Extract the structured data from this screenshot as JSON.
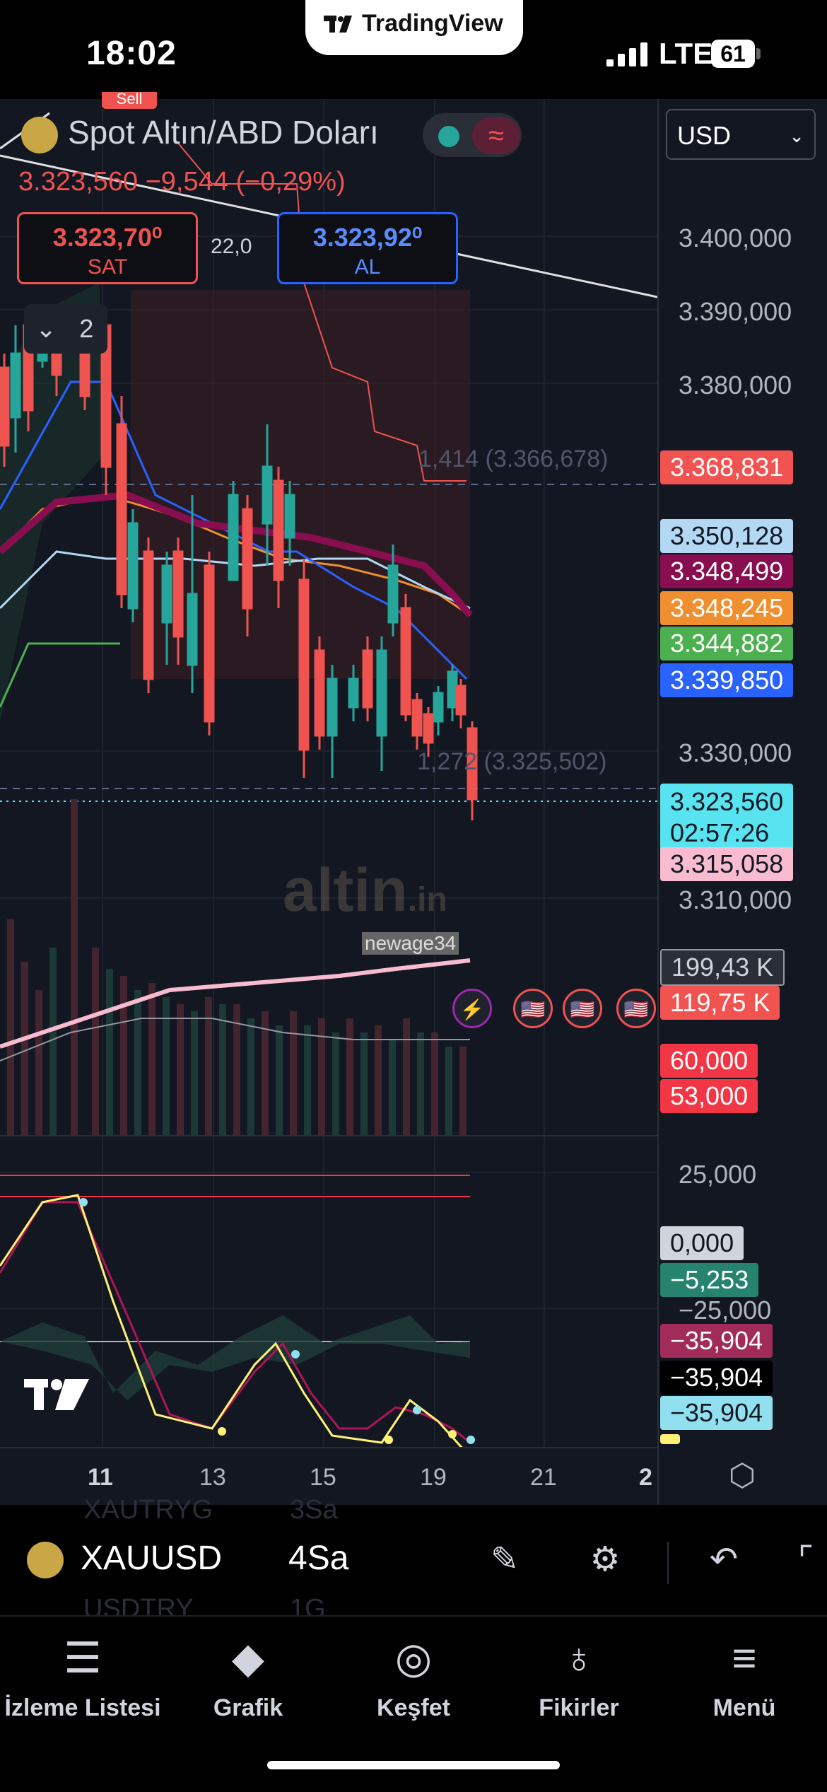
{
  "status_bar": {
    "time": "18:02",
    "carrier_logo": "TradingView",
    "network": "LTE",
    "battery": "61"
  },
  "chart": {
    "symbol_title": "Spot Altın/ABD Doları",
    "price_change": "3.323,560  −9,544 (−0,29%)",
    "sell": {
      "price": "3.323,70⁰",
      "label": "SAT"
    },
    "buy": {
      "price": "3.323,92⁰",
      "label": "AL"
    },
    "spread": "22,0",
    "indicator_count": "2",
    "sell_flag": "Sell",
    "currency": "USD",
    "fib_upper": "1,414 (3.366,678)",
    "fib_lower": "1,272 (3.325,502)",
    "watermark": "altin",
    "watermark_suffix": ".in",
    "author": "newage34",
    "colors": {
      "up": "#26a69a",
      "down": "#ef5350",
      "background": "#131722"
    }
  },
  "price_axis": {
    "labels": [
      "3.400,000",
      "3.390,000",
      "3.380,000",
      "3.330,000",
      "3.310,000",
      "25,000",
      "−25,000"
    ],
    "tags": [
      {
        "text": "3.368,831",
        "color": "#f05350"
      },
      {
        "text": "3.350,128",
        "color": "#b2d8f4"
      },
      {
        "text": "3.348,499",
        "color": "#880e4f"
      },
      {
        "text": "3.348,245",
        "color": "#ef8f30"
      },
      {
        "text": "3.344,882",
        "color": "#4caf50"
      },
      {
        "text": "3.339,850",
        "color": "#2962ff"
      },
      {
        "text": "3.323,560",
        "color": "#57e3f0"
      },
      {
        "text": "02:57:26",
        "color": "#57e3f0"
      },
      {
        "text": "3.315,058",
        "color": "#f8bbd0"
      },
      {
        "text": "199,43 K",
        "color": "#9598a1"
      },
      {
        "text": "119,75 K",
        "color": "#f05350"
      },
      {
        "text": "60,000",
        "color": "#f23645"
      },
      {
        "text": "53,000",
        "color": "#f23645"
      },
      {
        "text": "0,000",
        "color": "#d1d4dc"
      },
      {
        "text": "−5,253",
        "color": "#26836e"
      },
      {
        "text": "−35,904",
        "color": "#a12c5a"
      },
      {
        "text": "−35,904",
        "color": "#000000"
      },
      {
        "text": "−35,904",
        "color": "#90e0ef"
      }
    ]
  },
  "time_axis": [
    "11",
    "13",
    "15",
    "19",
    "21",
    "2"
  ],
  "toolbar": {
    "symbol": "XAUUSD",
    "interval": "4Sa",
    "ghost_row_1": "XAUTRYG",
    "ghost_row_1b": "3Sa",
    "ghost_row_2": "USDTRY",
    "ghost_row_2b": "1G",
    "icons": [
      "pencil-icon",
      "sliders-icon",
      "undo-icon",
      "fullscreen-icon"
    ]
  },
  "nav": [
    {
      "label": "İzleme Listesi",
      "icon": "list-icon"
    },
    {
      "label": "Grafik",
      "icon": "candles-icon"
    },
    {
      "label": "Keşfet",
      "icon": "compass-icon"
    },
    {
      "label": "Fikirler",
      "icon": "lightbulb-icon"
    },
    {
      "label": "Menü",
      "icon": "menu-icon"
    }
  ]
}
